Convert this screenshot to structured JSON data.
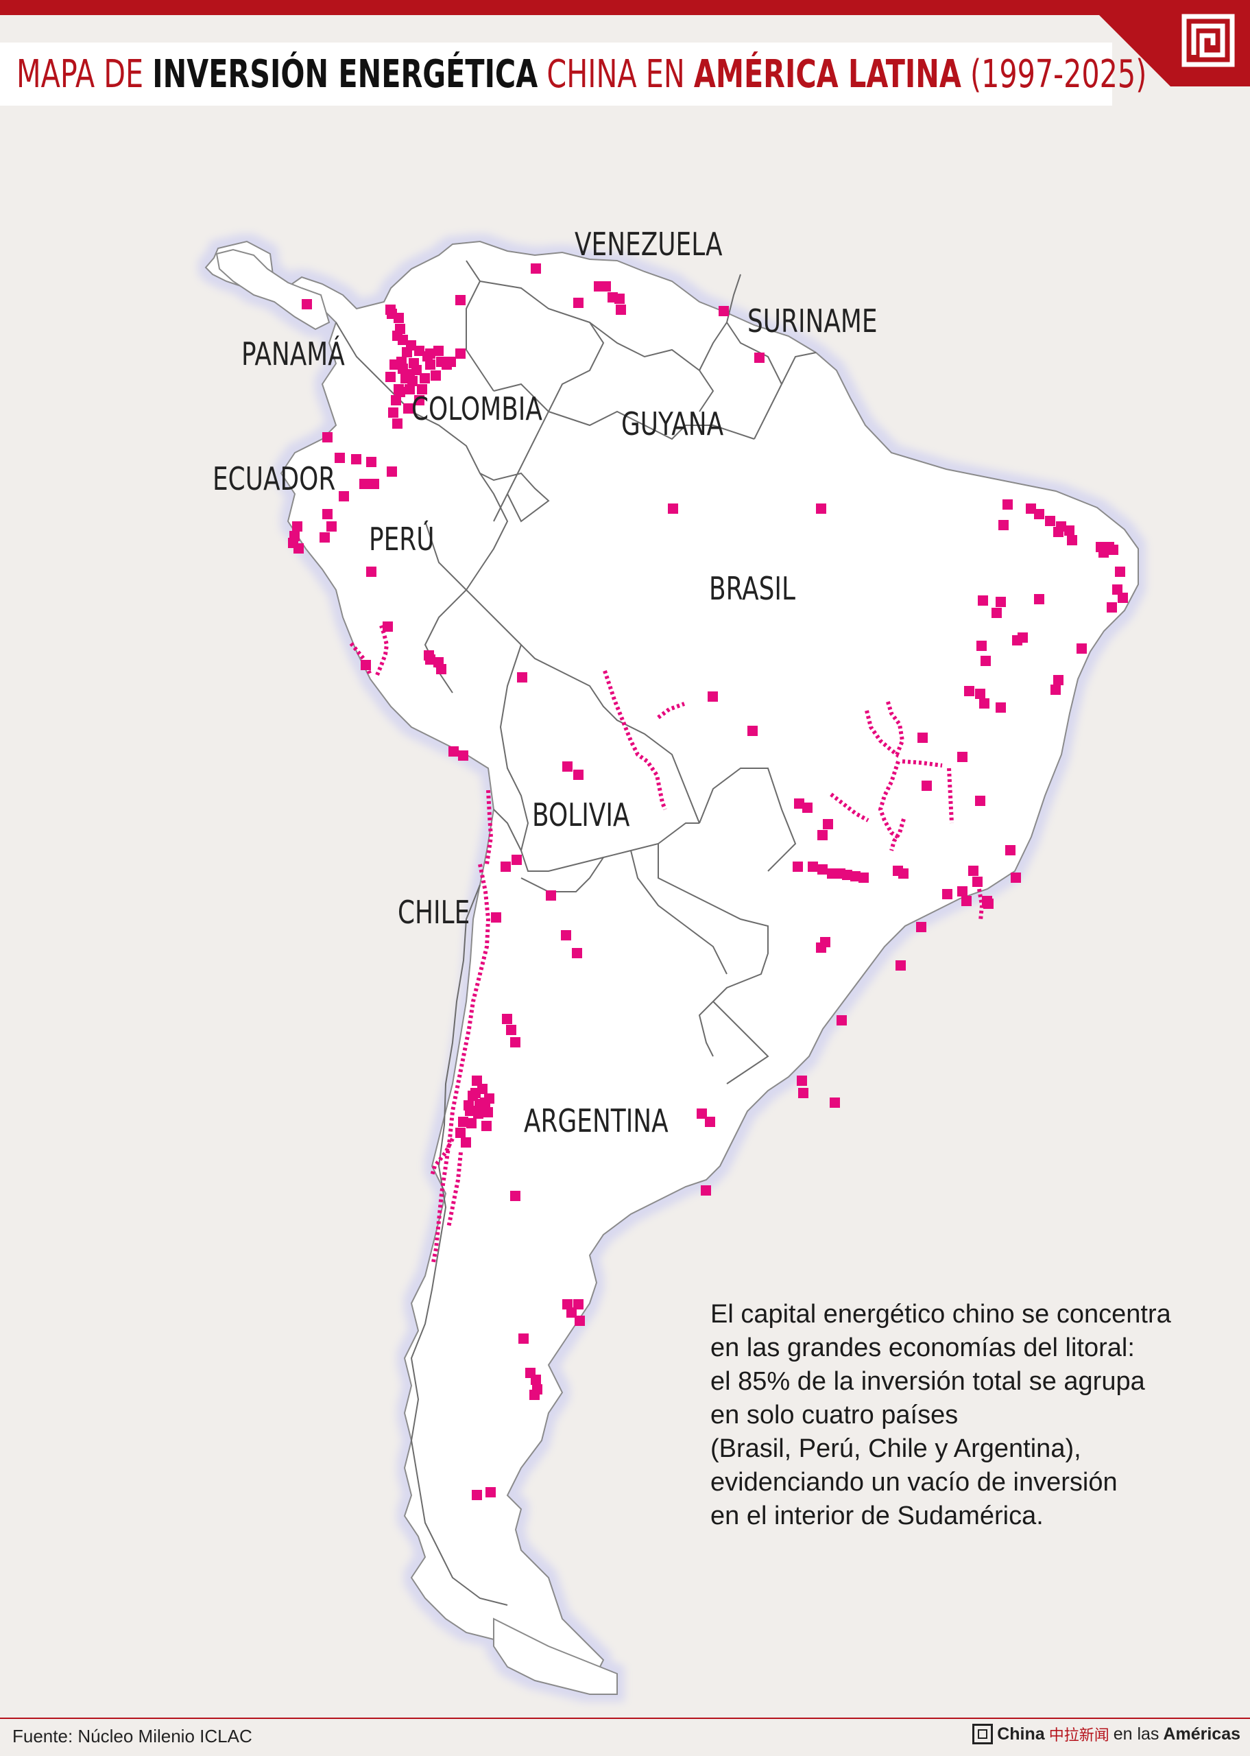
{
  "header": {
    "title_parts": [
      "MAPA DE ",
      "INVERSIÓN ENERGÉTICA",
      " CHINA EN ",
      "AMÉRICA LATINA",
      " (1997-2025)"
    ],
    "logo": "maze-square-logo",
    "accent_color": "#b5121b"
  },
  "map": {
    "marker_color": "#e6097d",
    "marker_shape": "square",
    "land_color": "#ffffff",
    "border_color": "#6b6b6b",
    "halo_color": "#d9d9ef",
    "labels": {
      "venezuela": "VENEZUELA",
      "suriname": "SURINAME",
      "panama": "PANAMÁ",
      "colombia": "COLOMBIA",
      "guyana": "GUYANA",
      "ecuador": "ECUADOR",
      "peru": "PERÚ",
      "brasil": "BRASIL",
      "bolivia": "BOLIVIA",
      "chile": "CHILE",
      "argentina": "ARGENTINA"
    }
  },
  "note": {
    "lines": [
      "El capital energético chino se concentra",
      "en las grandes economías del litoral:",
      "el 85% de la inversión total se agrupa",
      "en solo cuatro países",
      "(Brasil, Perú, Chile y Argentina),",
      "evidenciando un vacío de inversión",
      "en el interior de Sudamérica."
    ]
  },
  "footer": {
    "source": "Fuente: Núcleo Milenio ICLAC",
    "brand_bold": "China",
    "brand_cn": "中拉新闻",
    "brand_mid": " en las ",
    "brand_end": "Américas"
  }
}
